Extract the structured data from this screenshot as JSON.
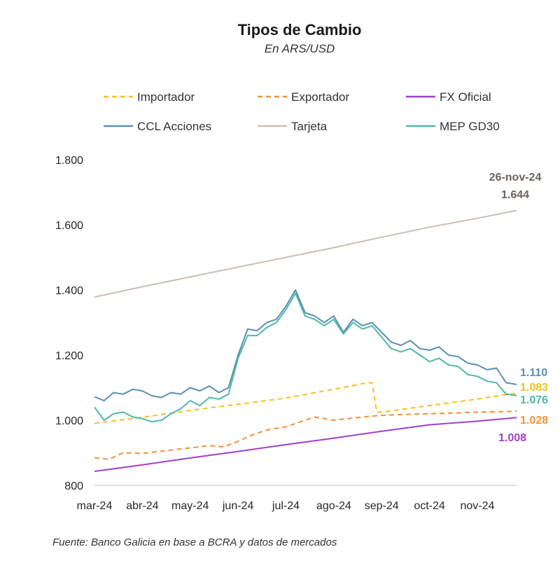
{
  "chart_data": {
    "type": "line",
    "title": "Tipos de Cambio",
    "subtitle": "En ARS/USD",
    "source": "Fuente: Banco Galicia en base a BCRA y datos de mercados",
    "ylim": [
      800,
      1800
    ],
    "yticks": [
      "800",
      "1.000",
      "1.200",
      "1.400",
      "1.600",
      "1.800"
    ],
    "ytick_values": [
      800,
      1000,
      1200,
      1400,
      1600,
      1800
    ],
    "x_range": [
      0,
      8.82
    ],
    "categories": [
      "mar-24",
      "abr-24",
      "may-24",
      "jun-24",
      "jul-24",
      "ago-24",
      "sep-24",
      "oct-24",
      "nov-24"
    ],
    "date_annotation": "26-nov-24",
    "series": [
      {
        "name": "Importador",
        "color": "#F5C024",
        "dash": "7,5",
        "x": [
          0,
          1,
          2,
          3,
          4,
          5,
          5.7,
          5.8,
          5.9,
          6,
          7,
          8,
          8.82
        ],
        "values": [
          990,
          1009,
          1030,
          1049,
          1068,
          1095,
          1115,
          1115,
          1025,
          1025,
          1045,
          1065,
          1083
        ],
        "end_label": "1.083"
      },
      {
        "name": "Exportador",
        "color": "#F0923A",
        "dash": "7,5",
        "x": [
          0,
          0.3,
          0.6,
          1,
          1.4,
          2,
          2.4,
          2.7,
          3,
          3.3,
          3.6,
          4,
          4.3,
          4.6,
          5,
          5.3,
          5.6,
          6,
          6.5,
          7,
          7.5,
          8,
          8.5,
          8.82
        ],
        "values": [
          885,
          880,
          900,
          898,
          905,
          915,
          922,
          918,
          935,
          955,
          970,
          980,
          995,
          1010,
          1000,
          1005,
          1010,
          1015,
          1018,
          1020,
          1022,
          1025,
          1026,
          1028
        ],
        "end_label": "1.028"
      },
      {
        "name": "FX Oficial",
        "color": "#A040C8",
        "dash": "",
        "x": [
          0,
          1,
          2,
          3,
          4,
          5,
          6,
          7,
          8,
          8.82
        ],
        "values": [
          843,
          863,
          884,
          904,
          925,
          945,
          966,
          986,
          997,
          1008
        ],
        "end_label": "1.008"
      },
      {
        "name": "CCL Acciones",
        "color": "#5B8FB3",
        "dash": "",
        "x": [
          0,
          0.2,
          0.4,
          0.6,
          0.8,
          1.0,
          1.2,
          1.4,
          1.6,
          1.8,
          2.0,
          2.2,
          2.4,
          2.6,
          2.8,
          3.0,
          3.2,
          3.4,
          3.6,
          3.8,
          4.0,
          4.2,
          4.4,
          4.6,
          4.8,
          5.0,
          5.2,
          5.4,
          5.6,
          5.8,
          6.0,
          6.2,
          6.4,
          6.6,
          6.8,
          7.0,
          7.2,
          7.4,
          7.6,
          7.8,
          8.0,
          8.2,
          8.4,
          8.6,
          8.82
        ],
        "values": [
          1072,
          1060,
          1085,
          1080,
          1095,
          1090,
          1075,
          1070,
          1085,
          1080,
          1100,
          1090,
          1105,
          1085,
          1100,
          1200,
          1280,
          1275,
          1300,
          1310,
          1350,
          1400,
          1330,
          1320,
          1300,
          1320,
          1270,
          1310,
          1290,
          1300,
          1270,
          1240,
          1230,
          1245,
          1220,
          1215,
          1225,
          1200,
          1195,
          1175,
          1170,
          1155,
          1160,
          1115,
          1110
        ],
        "end_label": "1.110"
      },
      {
        "name": "Tarjeta",
        "color": "#C9BDB5",
        "dash": "",
        "x": [
          0,
          1,
          2,
          3,
          4,
          5,
          6,
          7,
          8,
          8.82
        ],
        "values": [
          1378,
          1410,
          1440,
          1470,
          1500,
          1530,
          1562,
          1593,
          1620,
          1644
        ],
        "end_label": "1.644"
      },
      {
        "name": "MEP GD30",
        "color": "#4FB8A8",
        "dash": "",
        "x": [
          0,
          0.2,
          0.4,
          0.6,
          0.8,
          1.0,
          1.2,
          1.4,
          1.6,
          1.8,
          2.0,
          2.2,
          2.4,
          2.6,
          2.8,
          3.0,
          3.2,
          3.4,
          3.6,
          3.8,
          4.0,
          4.2,
          4.4,
          4.6,
          4.8,
          5.0,
          5.2,
          5.4,
          5.6,
          5.8,
          6.0,
          6.2,
          6.4,
          6.6,
          6.8,
          7.0,
          7.2,
          7.4,
          7.6,
          7.8,
          8.0,
          8.2,
          8.4,
          8.6,
          8.82
        ],
        "values": [
          1040,
          1000,
          1020,
          1025,
          1010,
          1005,
          995,
          1000,
          1020,
          1035,
          1060,
          1045,
          1070,
          1065,
          1080,
          1190,
          1260,
          1260,
          1285,
          1300,
          1340,
          1390,
          1320,
          1310,
          1290,
          1310,
          1265,
          1300,
          1280,
          1290,
          1255,
          1220,
          1210,
          1220,
          1200,
          1180,
          1190,
          1170,
          1165,
          1140,
          1135,
          1120,
          1115,
          1080,
          1076
        ],
        "end_label": "1.076"
      }
    ]
  }
}
